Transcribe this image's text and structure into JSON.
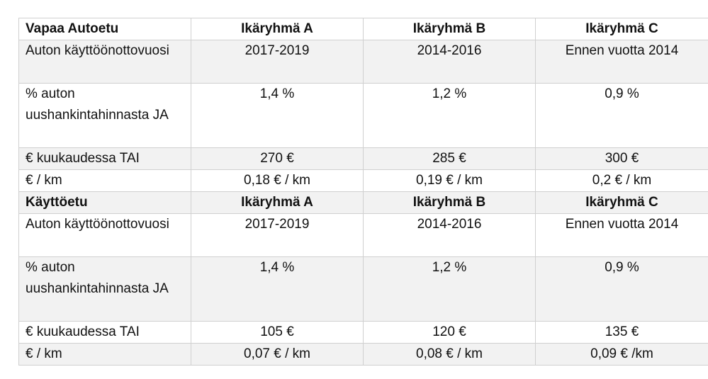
{
  "table": {
    "free_car": {
      "header": [
        "Vapaa Autoetu",
        "Ikäryhmä A",
        "Ikäryhmä B",
        "Ikäryhmä C"
      ],
      "rows": [
        {
          "label": "Auton käyttöönottovuosi",
          "values": [
            "2017-2019",
            "2014-2016",
            "Ennen vuotta 2014"
          ]
        },
        {
          "label": "% auton uushankintahinnasta JA",
          "values": [
            "1,4 %",
            "1,2 %",
            "0,9 %"
          ]
        },
        {
          "label": "€ kuukaudessa TAI",
          "values": [
            "270 €",
            "285 €",
            "300 €"
          ]
        },
        {
          "label": "€ / km",
          "values": [
            "0,18 € / km",
            "0,19 € / km",
            "0,2 € / km"
          ]
        }
      ]
    },
    "use_car": {
      "header": [
        "Käyttöetu",
        "Ikäryhmä A",
        "Ikäryhmä B",
        "Ikäryhmä C"
      ],
      "rows": [
        {
          "label": "Auton käyttöönottovuosi",
          "values": [
            "2017-2019",
            "2014-2016",
            "Ennen vuotta 2014"
          ]
        },
        {
          "label": "% auton uushankintahinnasta JA",
          "values": [
            "1,4 %",
            "1,2 %",
            "0,9 %"
          ]
        },
        {
          "label": "€ kuukaudessa TAI",
          "values": [
            "105 €",
            "120 €",
            "135 €"
          ]
        },
        {
          "label": "€ / km",
          "values": [
            "0,07 € / km",
            "0,08 € / km",
            "0,09 € /km"
          ]
        }
      ]
    }
  }
}
